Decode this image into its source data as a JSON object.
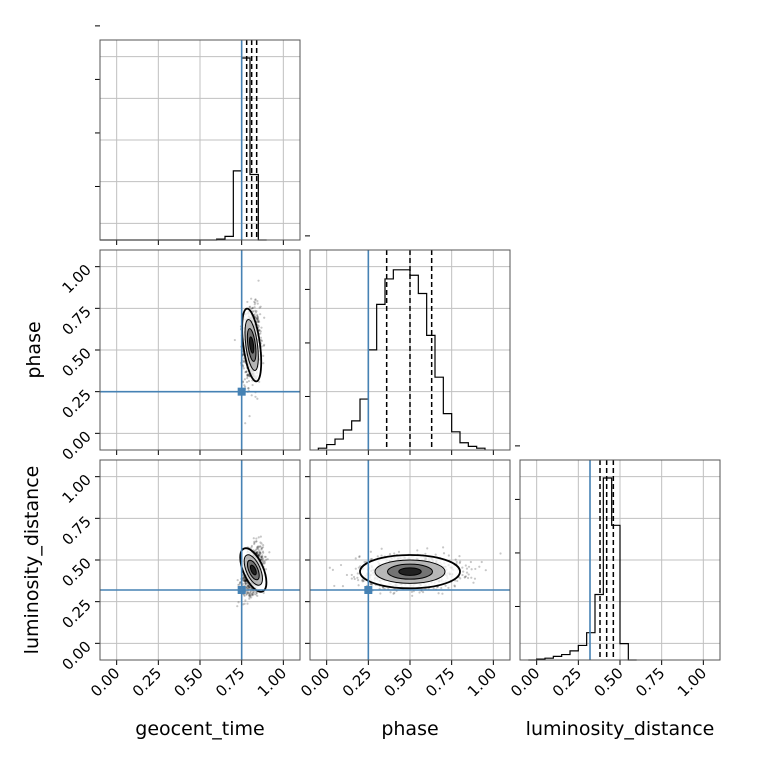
{
  "chart_data": {
    "type": "corner",
    "parameters": [
      "geocent_time",
      "phase",
      "luminosity_distance"
    ],
    "axis_labels": {
      "x": [
        "geocent_time",
        "phase",
        "luminosity_distance"
      ],
      "y": [
        "phase",
        "luminosity_distance"
      ]
    },
    "axis_range": [
      -0.1,
      1.1
    ],
    "ticks": [
      0.0,
      0.25,
      0.5,
      0.75,
      1.0
    ],
    "tick_labels": [
      "0.00",
      "0.25",
      "0.50",
      "0.75",
      "1.00"
    ],
    "truths": {
      "geocent_time": 0.75,
      "phase": 0.25,
      "luminosity_distance": 0.32
    },
    "quantiles": {
      "geocent_time": [
        0.78,
        0.81,
        0.84
      ],
      "phase": [
        0.36,
        0.5,
        0.63
      ],
      "luminosity_distance": [
        0.38,
        0.42,
        0.46
      ]
    },
    "histograms": {
      "geocent_time": {
        "edges": [
          -0.1,
          0.0,
          0.1,
          0.2,
          0.3,
          0.4,
          0.5,
          0.6,
          0.65,
          0.7,
          0.75,
          0.8,
          0.85,
          0.9
        ],
        "counts": [
          0,
          0,
          0,
          0,
          0,
          0,
          0,
          0.005,
          0.02,
          0.38,
          1.0,
          0.36,
          0
        ]
      },
      "phase": {
        "edges": [
          -0.05,
          0.0,
          0.05,
          0.1,
          0.15,
          0.2,
          0.25,
          0.3,
          0.35,
          0.4,
          0.45,
          0.5,
          0.55,
          0.6,
          0.65,
          0.7,
          0.75,
          0.8,
          0.85,
          0.9,
          0.95
        ],
        "counts": [
          0.01,
          0.03,
          0.06,
          0.11,
          0.16,
          0.28,
          0.55,
          0.8,
          0.94,
          0.99,
          0.99,
          0.96,
          0.86,
          0.63,
          0.4,
          0.2,
          0.1,
          0.04,
          0.02,
          0.01
        ]
      },
      "luminosity_distance": {
        "edges": [
          -0.05,
          0.0,
          0.05,
          0.1,
          0.15,
          0.2,
          0.25,
          0.3,
          0.35,
          0.4,
          0.45,
          0.5,
          0.55,
          0.6
        ],
        "counts": [
          0.0,
          0.005,
          0.01,
          0.02,
          0.03,
          0.05,
          0.08,
          0.15,
          0.36,
          1.0,
          0.74,
          0.09,
          0.0
        ]
      }
    },
    "panels_2d": [
      {
        "x": "geocent_time",
        "y": "phase",
        "center": [
          0.81,
          0.53
        ],
        "spread": [
          0.025,
          0.11
        ],
        "correlation": 0.05
      },
      {
        "x": "geocent_time",
        "y": "luminosity_distance",
        "center": [
          0.82,
          0.44
        ],
        "spread": [
          0.03,
          0.07
        ],
        "correlation": 0.35
      },
      {
        "x": "phase",
        "y": "luminosity_distance",
        "center": [
          0.5,
          0.43
        ],
        "spread": [
          0.15,
          0.05
        ],
        "correlation": 0.0
      }
    ],
    "colors": {
      "truth": "#4682b4",
      "hist": "#000000",
      "quantile": "#000000",
      "grid": "#c0c0c0",
      "frame": "#555555"
    }
  }
}
